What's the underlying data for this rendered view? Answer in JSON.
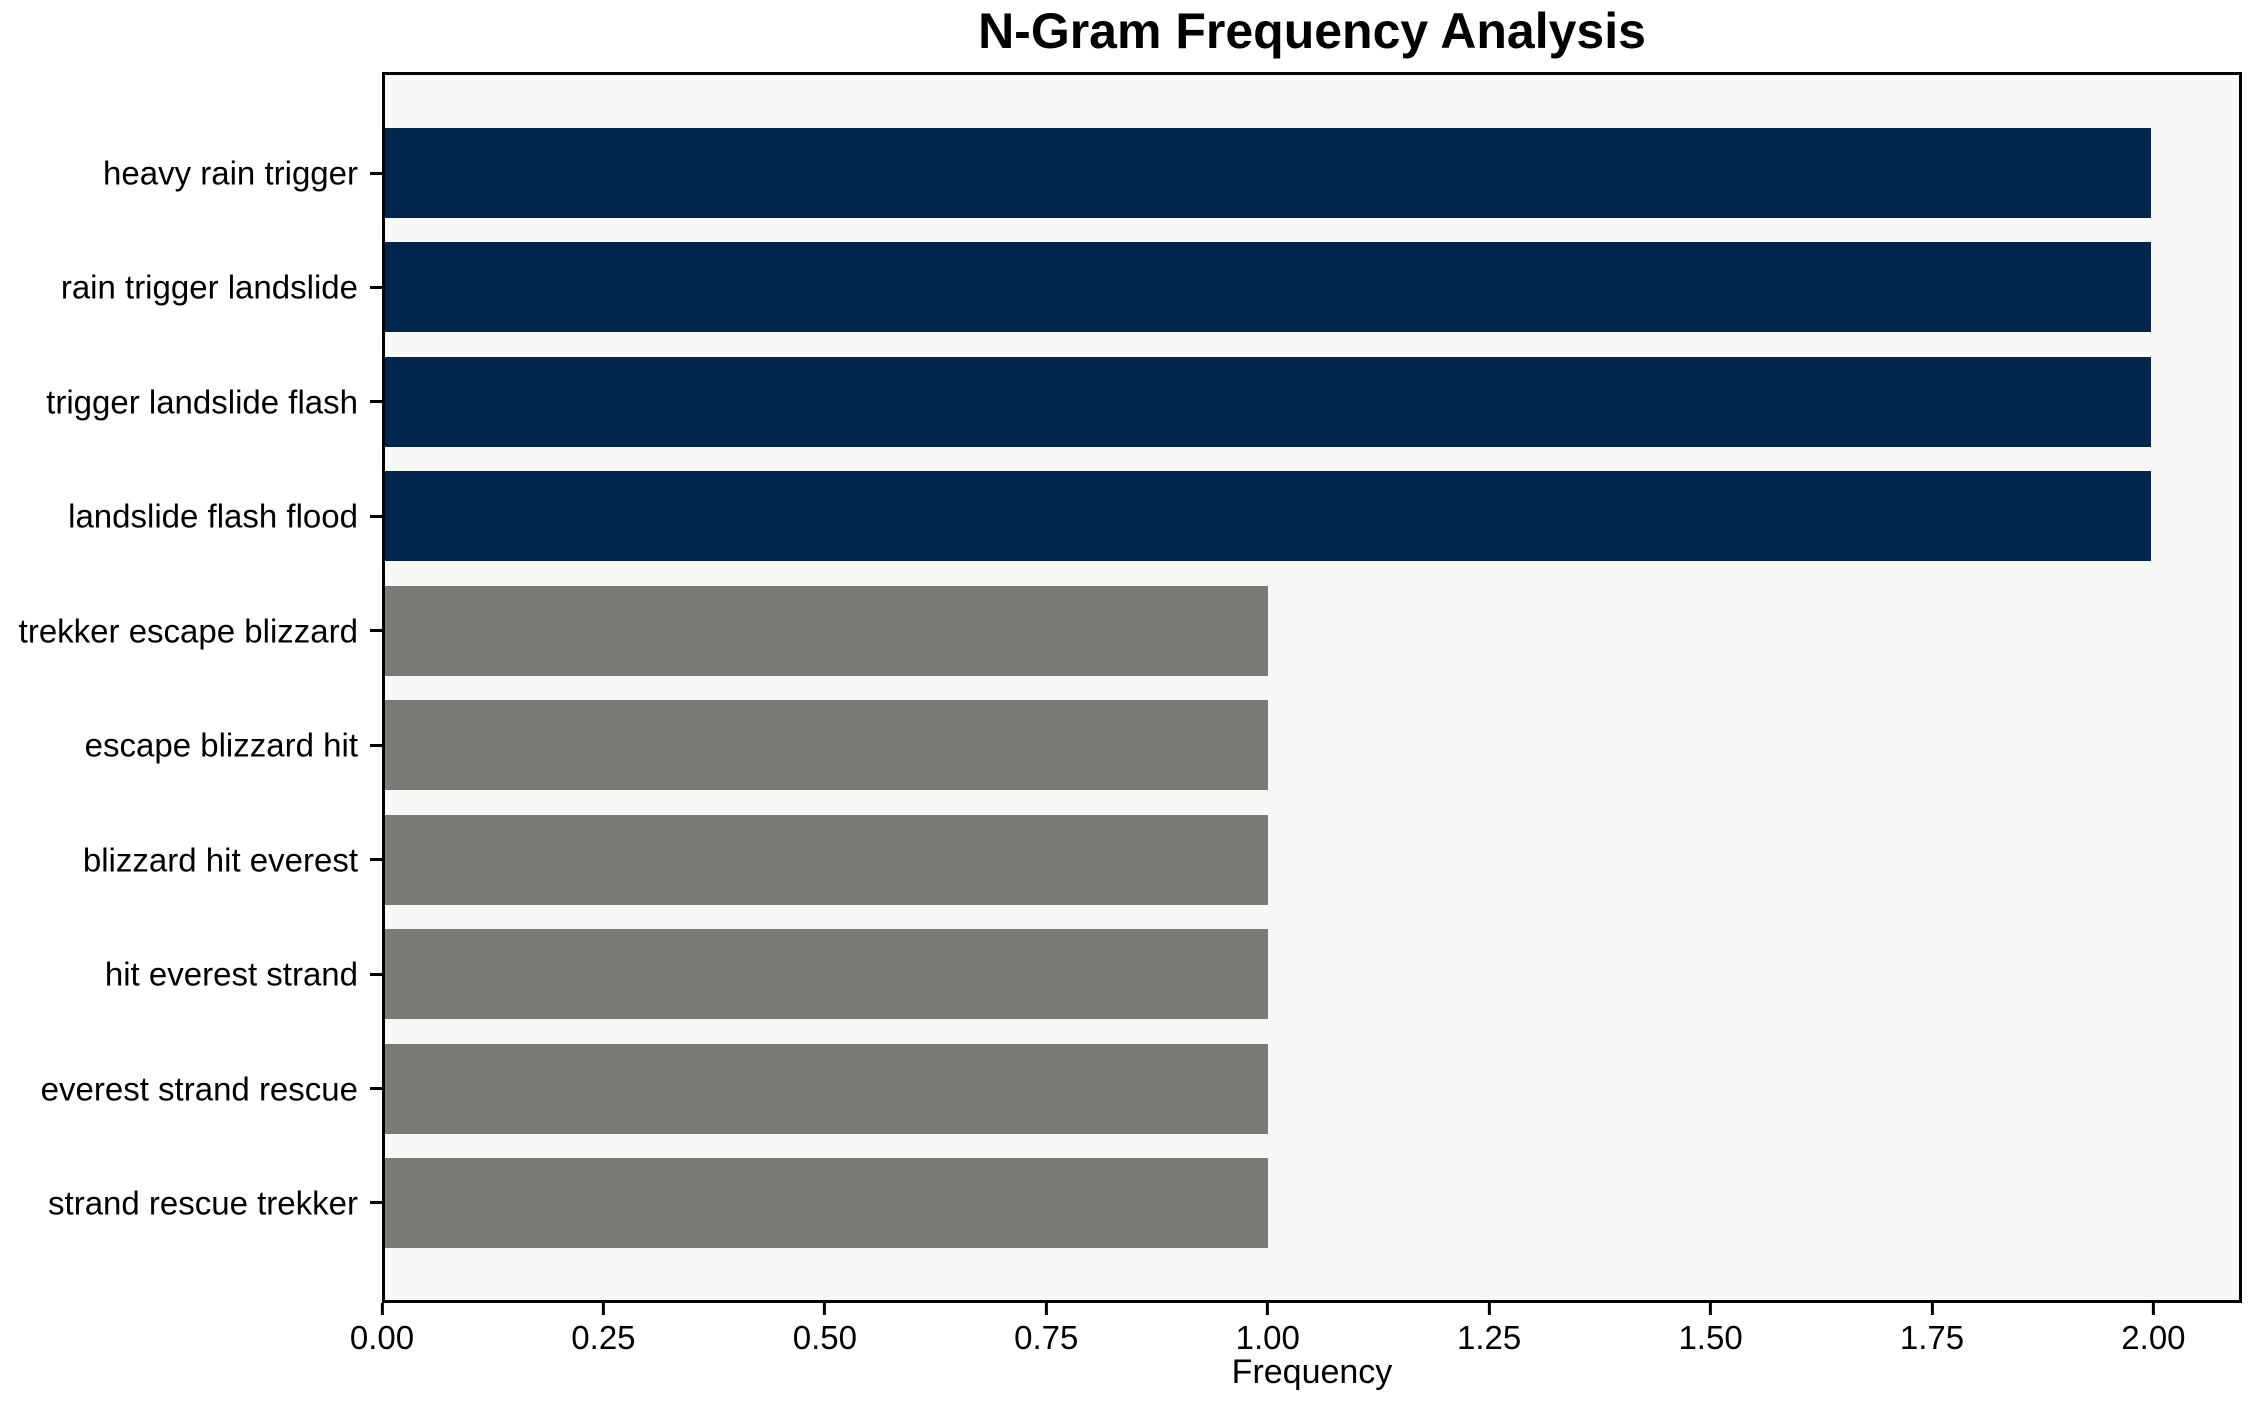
{
  "chart_data": {
    "type": "bar",
    "orientation": "horizontal",
    "title": "N-Gram Frequency Analysis",
    "xlabel": "Frequency",
    "ylabel": "",
    "categories": [
      "heavy rain trigger",
      "rain trigger landslide",
      "trigger landslide flash",
      "landslide flash flood",
      "trekker escape blizzard",
      "escape blizzard hit",
      "blizzard hit everest",
      "hit everest strand",
      "everest strand rescue",
      "strand rescue trekker"
    ],
    "values": [
      2,
      2,
      2,
      2,
      1,
      1,
      1,
      1,
      1,
      1
    ],
    "bar_colors": [
      "#02264e",
      "#02264e",
      "#02264e",
      "#02264e",
      "#7a7a76",
      "#7a7a76",
      "#7a7a76",
      "#7a7a76",
      "#7a7a76",
      "#7a7a76"
    ],
    "xlim": [
      0,
      2.1
    ],
    "xticks": [
      0,
      0.25,
      0.5,
      0.75,
      1.0,
      1.25,
      1.5,
      1.75,
      2.0
    ],
    "xtick_labels": [
      "0.00",
      "0.25",
      "0.50",
      "0.75",
      "1.00",
      "1.25",
      "1.50",
      "1.75",
      "2.00"
    ],
    "grid": false,
    "legend": null,
    "plot_background": "#f8f8f6",
    "figure_background": "#ffffff",
    "spine_color": "#000000"
  }
}
